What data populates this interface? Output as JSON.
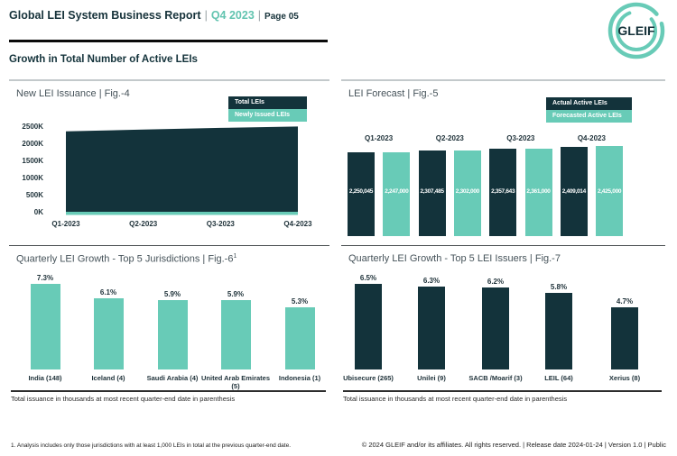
{
  "header": {
    "title": "Global LEI System Business Report",
    "sep": "|",
    "period": "Q4 2023",
    "page": "Page 05",
    "logo_text": "GLEIF"
  },
  "section": {
    "heading": "Growth in Total Number of Active LEIs"
  },
  "colors": {
    "dark": "#13333b",
    "teal": "#68cbb7",
    "accent_text": "#63c4b0"
  },
  "chart_data": [
    {
      "id": "fig4",
      "type": "area",
      "title": "New LEI Issuance | Fig.-4",
      "legend": [
        {
          "label": "Total LEIs",
          "color": "#13333b"
        },
        {
          "label": "Newly Issued LEIs",
          "color": "#68cbb7"
        }
      ],
      "x": [
        "Q1-2023",
        "Q2-2023",
        "Q3-2023",
        "Q4-2023"
      ],
      "y_ticks": [
        "0K",
        "500K",
        "1000K",
        "1500K",
        "2000K",
        "2500K"
      ],
      "ylim": [
        0,
        2500000
      ],
      "series": [
        {
          "name": "Total LEIs",
          "values": [
            2350000,
            2400000,
            2450000,
            2490000
          ]
        },
        {
          "name": "Newly Issued LEIs",
          "values": [
            50000,
            50000,
            50000,
            50000
          ]
        }
      ]
    },
    {
      "id": "fig5",
      "type": "bar",
      "title": "LEI Forecast | Fig.-5",
      "legend": [
        {
          "label": "Actual Active LEIs",
          "color": "#13333b"
        },
        {
          "label": "Forecasted Active LEIs",
          "color": "#68cbb7"
        }
      ],
      "categories": [
        "Q1-2023",
        "Q2-2023",
        "Q3-2023",
        "Q4-2023"
      ],
      "series": [
        {
          "name": "Actual Active LEIs",
          "values": [
            2250045,
            2307485,
            2357643,
            2409014
          ],
          "labels": [
            "2,250,045",
            "2,307,485",
            "2,357,643",
            "2,409,014"
          ]
        },
        {
          "name": "Forecasted Active LEIs",
          "values": [
            2247000,
            2302000,
            2361000,
            2425000
          ],
          "labels": [
            "2,247,000",
            "2,302,000",
            "2,361,000",
            "2,425,000"
          ]
        }
      ]
    },
    {
      "id": "fig6",
      "type": "bar",
      "title": "Quarterly LEI Growth - Top 5 Jurisdictions | Fig.-6",
      "sup": "1",
      "categories": [
        "India (148)",
        "Iceland (4)",
        "Saudi Arabia (4)",
        "United Arab Emirates (5)",
        "Indonesia (1)"
      ],
      "values": [
        7.3,
        6.1,
        5.9,
        5.9,
        5.3
      ],
      "labels": [
        "7.3%",
        "6.1%",
        "5.9%",
        "5.9%",
        "5.3%"
      ],
      "note": "Total issuance in thousands at most recent quarter-end date in parenthesis"
    },
    {
      "id": "fig7",
      "type": "bar",
      "title": "Quarterly LEI Growth - Top 5 LEI Issuers | Fig.-7",
      "categories": [
        "Ubisecure (265)",
        "Unilei (9)",
        "SACB /Moarif (3)",
        "LEIL (64)",
        "Xerius (8)"
      ],
      "values": [
        6.5,
        6.3,
        6.2,
        5.8,
        4.7
      ],
      "labels": [
        "6.5%",
        "6.3%",
        "6.2%",
        "5.8%",
        "4.7%"
      ],
      "note": "Total issuance in thousands at most recent quarter-end date in parenthesis"
    }
  ],
  "footer": {
    "footnote": "1. Analysis includes only those jurisdictions with at least 1,000 LEIs in total at the previous quarter-end date.",
    "copyright": "© 2024 GLEIF and/or its affiliates. All rights reserved.  | Release date 2024-01-24 | Version 1.0 | Public"
  }
}
